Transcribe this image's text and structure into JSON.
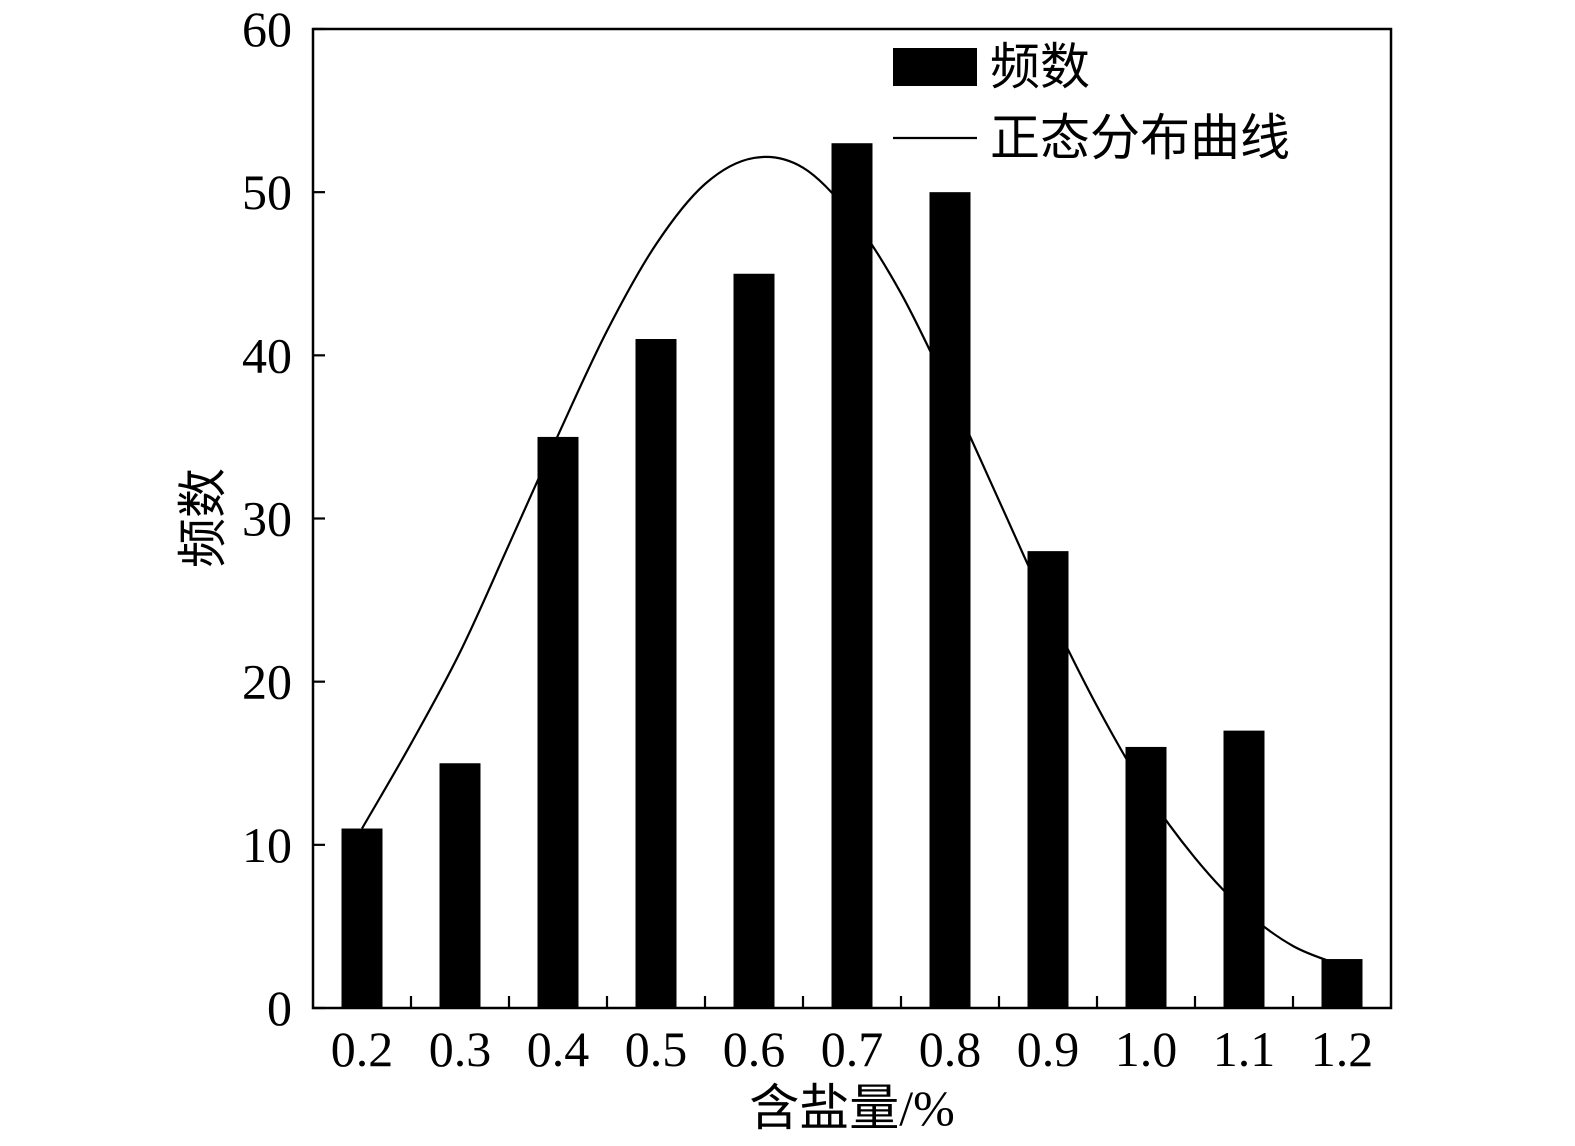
{
  "chart_data": {
    "type": "bar",
    "categories": [
      "0.2",
      "0.3",
      "0.4",
      "0.5",
      "0.6",
      "0.7",
      "0.8",
      "0.9",
      "1.0",
      "1.1",
      "1.2"
    ],
    "series": [
      {
        "name": "频数",
        "type": "bar",
        "color": "#000000",
        "values": [
          11,
          15,
          35,
          41,
          45,
          53,
          50,
          28,
          16,
          17,
          3
        ]
      },
      {
        "name": "正态分布曲线",
        "type": "line",
        "color": "#000000",
        "x": [
          0.2,
          0.25,
          0.3,
          0.35,
          0.4,
          0.45,
          0.5,
          0.55,
          0.6,
          0.65,
          0.7,
          0.75,
          0.8,
          0.85,
          0.9,
          0.95,
          1.0,
          1.05,
          1.1,
          1.15,
          1.2
        ],
        "y": [
          11.0,
          16.2,
          21.8,
          28.4,
          35.1,
          41.5,
          46.8,
          50.5,
          52.1,
          51.5,
          48.5,
          43.8,
          37.7,
          31.1,
          24.5,
          18.5,
          13.3,
          9.2,
          6.0,
          3.8,
          2.6
        ]
      }
    ],
    "xlabel": "含盐量/%",
    "ylabel": "频数",
    "ylim": [
      0,
      60
    ],
    "yticks": [
      0,
      10,
      20,
      30,
      40,
      50,
      60
    ],
    "grid": false,
    "legend_position": "top-right"
  }
}
